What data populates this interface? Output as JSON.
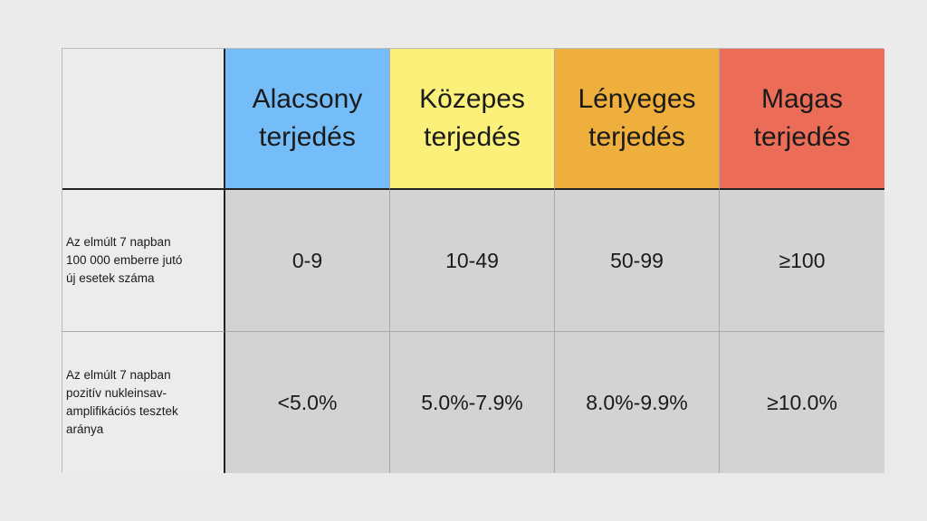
{
  "table": {
    "columns": [
      {
        "line1": "Alacsony",
        "line2": "terjedés",
        "color": "#74bdf8"
      },
      {
        "line1": "Közepes",
        "line2": "terjedés",
        "color": "#fbf17a"
      },
      {
        "line1": "Lényeges",
        "line2": "terjedés",
        "color": "#efaf3c"
      },
      {
        "line1": "Magas",
        "line2": "terjedés",
        "color": "#ec6d57"
      }
    ],
    "rows": [
      {
        "label_lines": [
          "Az elmúlt 7 napban",
          "100 000 emberre jutó",
          "új esetek száma"
        ],
        "values": [
          "0-9",
          "10-49",
          "50-99",
          "≥100"
        ]
      },
      {
        "label_lines": [
          "Az elmúlt 7 napban",
          "pozitív nukleinsav-",
          "amplifikációs tesztek",
          "aránya"
        ],
        "values": [
          "<5.0%",
          "5.0%-7.9%",
          "8.0%-9.9%",
          "≥10.0%"
        ]
      }
    ],
    "colors": {
      "background": "#ebebeb",
      "label_cell": "#ececec",
      "value_cell": "#d3d3d3"
    }
  }
}
